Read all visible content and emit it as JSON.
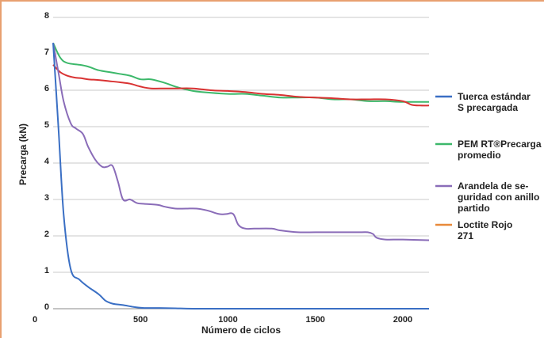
{
  "chart_data": {
    "type": "line",
    "title": "",
    "xlabel": "Número de ciclos",
    "ylabel": "Precarga (kN)",
    "xlim": [
      0,
      2150
    ],
    "ylim": [
      0,
      8
    ],
    "x_ticks": [
      0,
      500,
      1000,
      1500,
      2000
    ],
    "y_ticks": [
      0,
      1,
      2,
      3,
      4,
      5,
      6,
      7,
      8
    ],
    "grid": "horizontal",
    "legend": "right",
    "series": [
      {
        "name": "Tuerca estándar S precargada",
        "legend_lines": [
          "Tuerca estándar",
          "S precargada"
        ],
        "color": "#3a6fc4",
        "x": [
          0,
          30,
          60,
          100,
          150,
          200,
          260,
          300,
          340,
          400,
          460,
          520,
          600,
          700,
          800,
          1000,
          1500,
          2150
        ],
        "y": [
          7.3,
          5.0,
          2.6,
          1.1,
          0.8,
          0.6,
          0.4,
          0.22,
          0.14,
          0.1,
          0.05,
          0.02,
          0.02,
          0.01,
          0.0,
          0.0,
          0.0,
          0.0
        ]
      },
      {
        "name": "PEM RT®Precarga promedio",
        "legend_lines": [
          "PEM RT®Precarga",
          "promedio"
        ],
        "color": "#3cb86a",
        "x": [
          0,
          40,
          80,
          150,
          200,
          260,
          320,
          380,
          440,
          500,
          560,
          640,
          700,
          780,
          850,
          1000,
          1100,
          1200,
          1300,
          1400,
          1500,
          1600,
          1700,
          1800,
          1900,
          2000,
          2150
        ],
        "y": [
          7.3,
          6.9,
          6.75,
          6.7,
          6.65,
          6.55,
          6.5,
          6.45,
          6.4,
          6.3,
          6.3,
          6.2,
          6.1,
          6.0,
          5.95,
          5.9,
          5.9,
          5.85,
          5.8,
          5.8,
          5.8,
          5.75,
          5.75,
          5.7,
          5.7,
          5.68,
          5.68
        ]
      },
      {
        "name": "Arandela de seguridad con anillo partido",
        "legend_lines": [
          "Arandela de se-",
          "guridad con anillo",
          "partido"
        ],
        "color": "#8a6cb8",
        "x": [
          0,
          30,
          60,
          100,
          130,
          170,
          200,
          240,
          280,
          310,
          340,
          370,
          400,
          440,
          480,
          520,
          600,
          640,
          700,
          760,
          820,
          880,
          950,
          990,
          1030,
          1060,
          1100,
          1150,
          1250,
          1300,
          1400,
          1500,
          1600,
          1750,
          1800,
          1830,
          1850,
          1900,
          2000,
          2150
        ],
        "y": [
          7.3,
          6.5,
          5.7,
          5.1,
          4.95,
          4.8,
          4.45,
          4.1,
          3.9,
          3.9,
          3.92,
          3.5,
          3.0,
          3.0,
          2.9,
          2.88,
          2.85,
          2.8,
          2.75,
          2.75,
          2.75,
          2.7,
          2.6,
          2.6,
          2.6,
          2.3,
          2.2,
          2.2,
          2.2,
          2.15,
          2.1,
          2.1,
          2.1,
          2.1,
          2.1,
          2.05,
          1.95,
          1.9,
          1.9,
          1.88
        ]
      },
      {
        "name": "Loctite Rojo 271",
        "legend_lines": [
          "Loctite Rojo",
          "271"
        ],
        "color": "#e8893a",
        "curve_color": "#d93232",
        "x": [
          0,
          40,
          80,
          120,
          160,
          200,
          260,
          320,
          380,
          440,
          500,
          560,
          640,
          700,
          800,
          900,
          1000,
          1100,
          1200,
          1300,
          1400,
          1500,
          1600,
          1700,
          1800,
          1900,
          2000,
          2050,
          2100,
          2150
        ],
        "y": [
          6.7,
          6.5,
          6.4,
          6.35,
          6.33,
          6.3,
          6.28,
          6.25,
          6.22,
          6.18,
          6.1,
          6.05,
          6.05,
          6.05,
          6.05,
          6.0,
          5.98,
          5.95,
          5.9,
          5.87,
          5.82,
          5.8,
          5.78,
          5.75,
          5.75,
          5.75,
          5.7,
          5.6,
          5.58,
          5.58
        ]
      }
    ]
  }
}
